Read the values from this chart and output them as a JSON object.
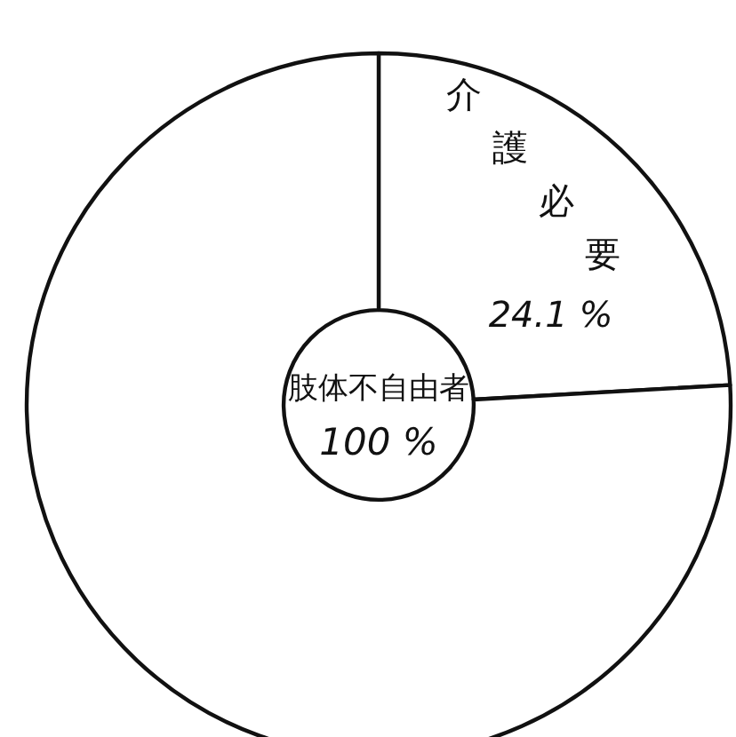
{
  "chart_data": {
    "type": "donut",
    "categories": [
      "介護必要",
      null
    ],
    "values": [
      24.1,
      75.9
    ],
    "colors": [
      "#ffffff",
      "#ffffff"
    ],
    "value_labels": [
      "24.1 %",
      null
    ],
    "annotations": [
      "肢体不自由者",
      "100 %"
    ]
  }
}
